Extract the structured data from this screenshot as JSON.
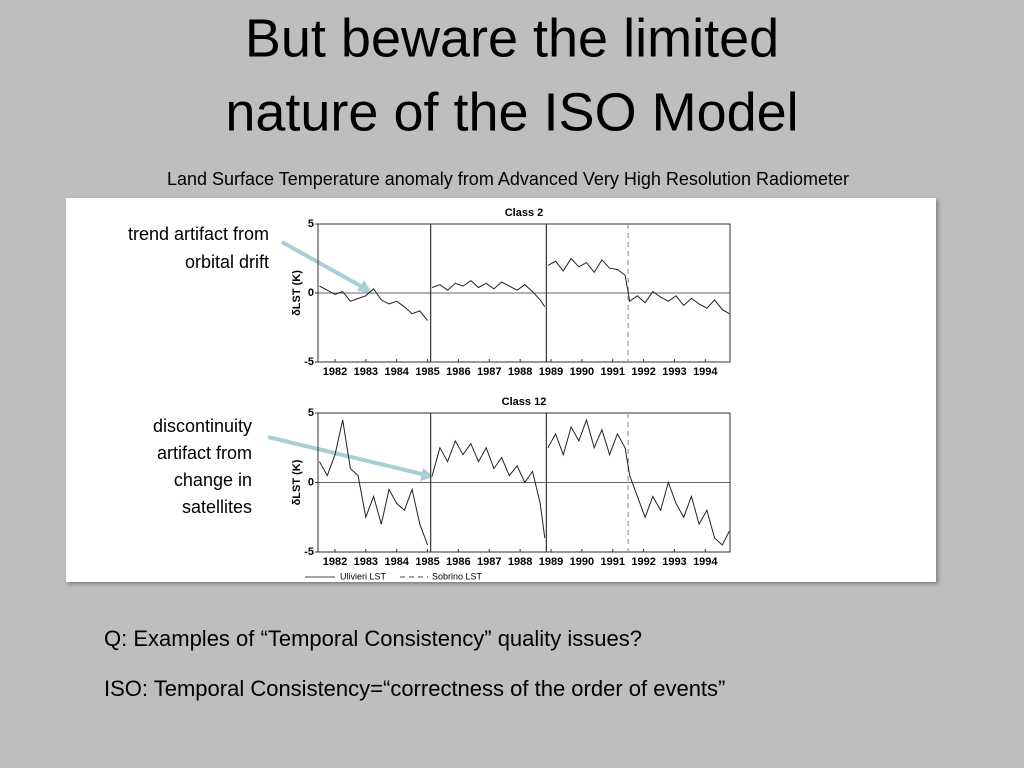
{
  "title": [
    "But beware the limited",
    "nature of the ISO Model"
  ],
  "subtitle": "Land Surface Temperature anomaly from Advanced Very High Resolution Radiometer",
  "annotations": [
    [
      "trend artifact from",
      "orbital drift"
    ],
    [
      "discontinuity",
      "artifact from",
      "change in",
      "satellites"
    ]
  ],
  "chart_data": [
    {
      "type": "line",
      "title": "Class 2",
      "y_label": "δLST (K)",
      "xlim": [
        1981.45,
        1994.8
      ],
      "ylim": [
        -5,
        5
      ],
      "yticks": [
        -5,
        0,
        5
      ],
      "xticks": [
        1982,
        1983,
        1984,
        1985,
        1986,
        1987,
        1988,
        1989,
        1990,
        1991,
        1992,
        1993,
        1994
      ],
      "grid": true,
      "breaks": [
        {
          "value": 1985.1,
          "style": "solid"
        },
        {
          "value": 1988.85,
          "style": "solid"
        },
        {
          "value": 1991.5,
          "style": "dashed"
        }
      ],
      "series": [
        {
          "name": "Ulivieri LST",
          "color": "#222222",
          "x": [
            1981.5,
            1981.75,
            1982,
            1982.25,
            1982.5,
            1982.75,
            1983,
            1983.25,
            1983.5,
            1983.75,
            1984,
            1984.25,
            1984.5,
            1984.75,
            1985.0,
            1985.1,
            1985.15,
            1985.4,
            1985.65,
            1985.9,
            1986.15,
            1986.4,
            1986.65,
            1986.9,
            1987.15,
            1987.4,
            1987.65,
            1987.9,
            1988.15,
            1988.4,
            1988.65,
            1988.8,
            1988.85,
            1988.9,
            1989.15,
            1989.4,
            1989.65,
            1989.9,
            1990.15,
            1990.4,
            1990.65,
            1990.9,
            1991.15,
            1991.4,
            1991.55,
            1991.8,
            1992.05,
            1992.3,
            1992.55,
            1992.8,
            1993.05,
            1993.3,
            1993.55,
            1993.8,
            1994.05,
            1994.3,
            1994.55,
            1994.78
          ],
          "values": [
            0.5,
            0.2,
            -0.1,
            0.1,
            -0.6,
            -0.4,
            -0.2,
            0.3,
            -0.5,
            -0.8,
            -0.6,
            -1.0,
            -1.5,
            -1.3,
            -2.0,
            null,
            0.4,
            0.6,
            0.2,
            0.7,
            0.5,
            0.9,
            0.4,
            0.7,
            0.3,
            0.8,
            0.5,
            0.2,
            0.6,
            0.1,
            -0.5,
            -1.0,
            null,
            2.0,
            2.3,
            1.6,
            2.5,
            1.9,
            2.2,
            1.5,
            2.4,
            1.8,
            1.7,
            1.3,
            -0.6,
            -0.2,
            -0.7,
            0.1,
            -0.3,
            -0.6,
            -0.2,
            -0.9,
            -0.4,
            -0.8,
            -1.1,
            -0.5,
            -1.2,
            -1.5
          ]
        }
      ]
    },
    {
      "type": "line",
      "title": "Class 12",
      "y_label": "δLST (K)",
      "xlim": [
        1981.45,
        1994.8
      ],
      "ylim": [
        -5,
        5
      ],
      "yticks": [
        -5,
        0,
        5
      ],
      "xticks": [
        1982,
        1983,
        1984,
        1985,
        1986,
        1987,
        1988,
        1989,
        1990,
        1991,
        1992,
        1993,
        1994
      ],
      "grid": true,
      "breaks": [
        {
          "value": 1985.1,
          "style": "solid"
        },
        {
          "value": 1988.85,
          "style": "solid"
        },
        {
          "value": 1991.5,
          "style": "dashed"
        }
      ],
      "series": [
        {
          "name": "Ulivieri LST",
          "color": "#222222",
          "x": [
            1981.5,
            1981.75,
            1982,
            1982.25,
            1982.5,
            1982.75,
            1983,
            1983.25,
            1983.5,
            1983.75,
            1984,
            1984.25,
            1984.5,
            1984.75,
            1985.0,
            1985.1,
            1985.15,
            1985.4,
            1985.65,
            1985.9,
            1986.15,
            1986.4,
            1986.65,
            1986.9,
            1987.15,
            1987.4,
            1987.65,
            1987.9,
            1988.15,
            1988.4,
            1988.65,
            1988.8,
            1988.85,
            1988.9,
            1989.15,
            1989.4,
            1989.65,
            1989.9,
            1990.15,
            1990.4,
            1990.65,
            1990.9,
            1991.15,
            1991.4,
            1991.55,
            1991.8,
            1992.05,
            1992.3,
            1992.55,
            1992.8,
            1993.05,
            1993.3,
            1993.55,
            1993.8,
            1994.05,
            1994.3,
            1994.55,
            1994.78
          ],
          "values": [
            1.5,
            0.5,
            2.0,
            4.5,
            1.0,
            0.5,
            -2.5,
            -1.0,
            -3.0,
            -0.5,
            -1.5,
            -2.0,
            -0.5,
            -3.0,
            -4.5,
            null,
            0.5,
            2.5,
            1.5,
            3.0,
            2.0,
            2.8,
            1.5,
            2.5,
            1.0,
            1.8,
            0.5,
            1.2,
            0.0,
            0.8,
            -1.5,
            -4.0,
            null,
            2.5,
            3.5,
            2.0,
            4.0,
            3.0,
            4.5,
            2.5,
            3.8,
            2.0,
            3.5,
            2.5,
            0.5,
            -1.0,
            -2.5,
            -1.0,
            -2.0,
            0.0,
            -1.5,
            -2.5,
            -1.0,
            -3.0,
            -2.0,
            -4.0,
            -4.5,
            -3.5
          ]
        }
      ]
    }
  ],
  "legend": [
    "Ulivieri LST",
    "Sobrino LST"
  ],
  "questions": [
    "Q:  Examples of “Temporal Consistency” quality issues?",
    "ISO: Temporal Consistency=“correctness of the order of events”"
  ]
}
